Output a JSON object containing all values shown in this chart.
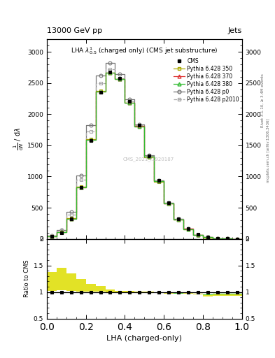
{
  "title_top": "13000 GeV pp",
  "title_right": "Jets",
  "plot_title": "LHA $\\lambda^{1}_{0.5}$ (charged only) (CMS jet substructure)",
  "xlabel": "LHA (charged-only)",
  "ylabel_main": "1 / mathrm{d}N / mathrm{d}lambda",
  "ylabel_ratio": "Ratio to CMS",
  "watermark": "CMS_2021_I1920187",
  "rivet_text": "Rivet 3.1.10, ≥ 3.4M events",
  "mcplots_text": "mcplots.cern.ch [arXiv:1306.3436]",
  "x_bins": [
    0.0,
    0.05,
    0.1,
    0.15,
    0.2,
    0.25,
    0.3,
    0.35,
    0.4,
    0.45,
    0.5,
    0.55,
    0.6,
    0.65,
    0.7,
    0.75,
    0.8,
    0.85,
    0.9,
    0.95,
    1.0
  ],
  "cms_y": [
    40,
    100,
    320,
    820,
    1580,
    2350,
    2680,
    2580,
    2200,
    1820,
    1330,
    940,
    580,
    320,
    160,
    70,
    25,
    7,
    1.5,
    0.3
  ],
  "p350_y": [
    42,
    105,
    330,
    840,
    1600,
    2370,
    2660,
    2560,
    2180,
    1800,
    1310,
    920,
    565,
    310,
    155,
    67,
    23,
    6.5,
    1.4,
    0.28
  ],
  "p370_y": [
    41,
    103,
    326,
    830,
    1592,
    2360,
    2670,
    2568,
    2188,
    1808,
    1318,
    928,
    572,
    314,
    158,
    68,
    24,
    6.8,
    1.45,
    0.29
  ],
  "p380_y": [
    41,
    103,
    325,
    828,
    1590,
    2358,
    2668,
    2566,
    2186,
    1806,
    1316,
    926,
    570,
    312,
    157,
    67.5,
    23.5,
    6.7,
    1.43,
    0.285
  ],
  "p0_y": [
    55,
    145,
    430,
    1020,
    1820,
    2620,
    2820,
    2640,
    2240,
    1840,
    1340,
    940,
    575,
    315,
    158,
    68,
    24,
    6.8,
    1.45,
    0.29
  ],
  "p2010_y": [
    50,
    130,
    390,
    950,
    1720,
    2500,
    2720,
    2580,
    2200,
    1820,
    1330,
    940,
    578,
    316,
    158,
    68,
    24,
    6.8,
    1.45,
    0.29
  ],
  "color_cms": "#000000",
  "color_p350": "#aaaa00",
  "color_p370": "#dd3333",
  "color_p380": "#33bb33",
  "color_p0": "#777777",
  "color_p2010": "#aaaaaa",
  "ratio_band_inner_color": "#33cc33",
  "ratio_band_outer_color": "#dddd00",
  "ylim_main": [
    0,
    3200
  ],
  "ylim_ratio": [
    0.5,
    2.0
  ],
  "yticks_main": [
    0,
    500,
    1000,
    1500,
    2000,
    2500,
    3000
  ],
  "yticks_ratio": [
    0.5,
    1.0,
    1.5,
    2.0
  ],
  "ratio_ytick_labels": [
    "0.5",
    "1",
    "1.5",
    "2"
  ]
}
